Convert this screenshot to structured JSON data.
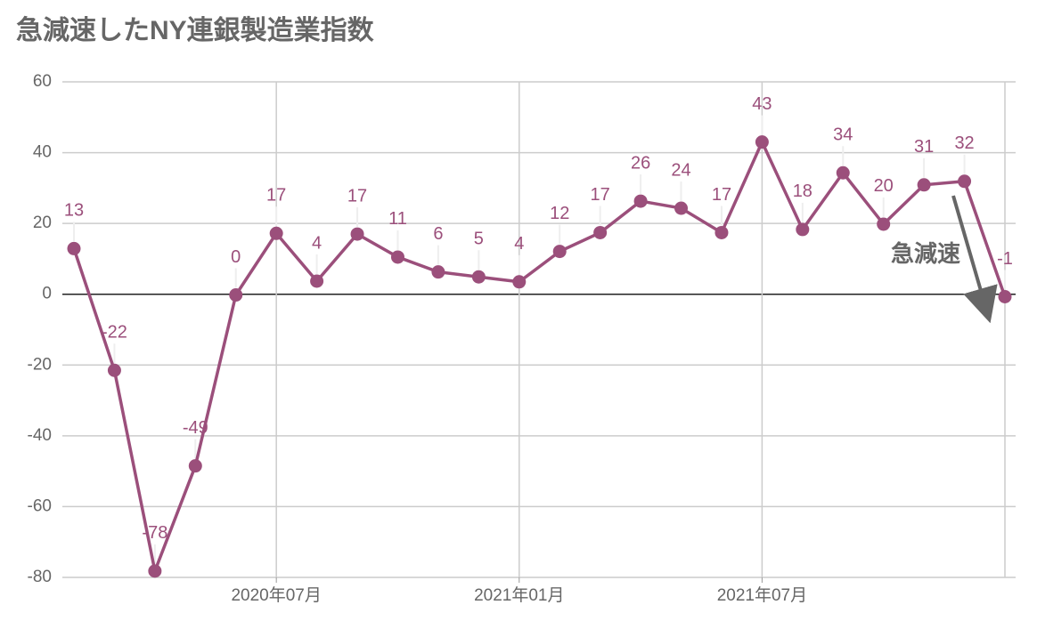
{
  "chart_data": {
    "type": "line",
    "title": "急減速したNY連銀製造業指数",
    "categories": [
      null,
      null,
      null,
      null,
      null,
      "2020年07月",
      null,
      null,
      null,
      null,
      null,
      "2021年01月",
      null,
      null,
      null,
      null,
      null,
      "2021年07月",
      null,
      null,
      null,
      null,
      null,
      null
    ],
    "series": [
      {
        "name": "NY連銀製造業指数",
        "color": "#9b4f7b",
        "values": [
          12.9,
          -21.5,
          -78.2,
          -48.5,
          -0.2,
          17.2,
          3.7,
          17,
          10.5,
          6.3,
          4.9,
          3.5,
          12.1,
          17.4,
          26.3,
          24.3,
          17.4,
          43,
          18.3,
          34.3,
          19.8,
          30.9,
          31.9,
          -0.7
        ],
        "value_labels": [
          "13",
          "-22",
          "-78",
          "-49",
          "0",
          "17",
          "4",
          "17",
          "11",
          "6",
          "5",
          "4",
          "12",
          "17",
          "26",
          "24",
          "17",
          "43",
          "18",
          "34",
          "20",
          "31",
          "32",
          "-1"
        ]
      }
    ],
    "ylim": [
      -80,
      60
    ],
    "yticks": [
      -80,
      -60,
      -40,
      -20,
      0,
      20,
      40,
      60
    ],
    "grid": true,
    "annotations": [
      "急減速"
    ]
  }
}
